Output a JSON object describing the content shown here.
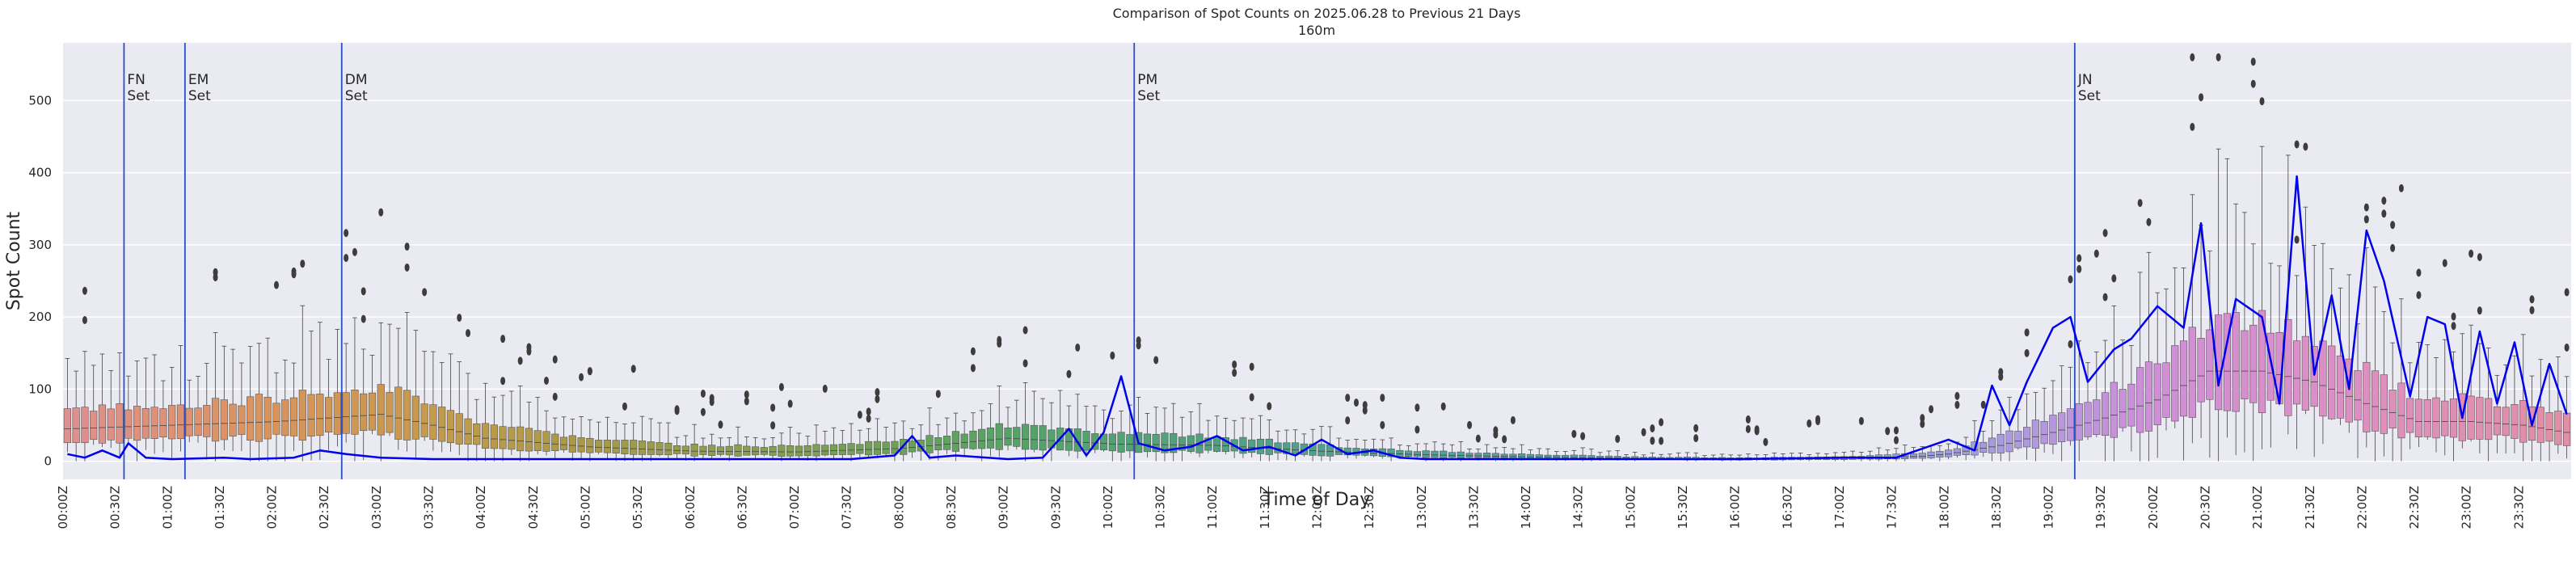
{
  "chart_data": {
    "type": "box",
    "title": "Comparison of Spot Counts on 2025.06.28 to Previous 21 Days",
    "subtitle": "160m",
    "xlabel": "Time of Day",
    "ylabel": "Spot Count",
    "ylim": [
      -25,
      580
    ],
    "yticks": [
      0,
      100,
      200,
      300,
      400,
      500
    ],
    "grid": true,
    "bins_per_hour": 12,
    "x_tick_labels": [
      "00:00Z",
      "00:30Z",
      "01:00Z",
      "01:30Z",
      "02:00Z",
      "02:30Z",
      "03:00Z",
      "03:30Z",
      "04:00Z",
      "04:30Z",
      "05:00Z",
      "05:30Z",
      "06:00Z",
      "06:30Z",
      "07:00Z",
      "07:30Z",
      "08:00Z",
      "08:30Z",
      "09:00Z",
      "09:30Z",
      "10:00Z",
      "10:30Z",
      "11:00Z",
      "11:30Z",
      "12:00Z",
      "12:30Z",
      "13:00Z",
      "13:30Z",
      "14:00Z",
      "14:30Z",
      "15:00Z",
      "15:30Z",
      "16:00Z",
      "16:30Z",
      "17:00Z",
      "17:30Z",
      "18:00Z",
      "18:30Z",
      "19:00Z",
      "19:30Z",
      "20:00Z",
      "20:30Z",
      "21:00Z",
      "21:30Z",
      "22:00Z",
      "22:30Z",
      "23:00Z",
      "23:30Z"
    ],
    "events": [
      {
        "time": "00:35Z",
        "label1": "FN",
        "label2": "Set"
      },
      {
        "time": "01:10Z",
        "label1": "EM",
        "label2": "Set"
      },
      {
        "time": "02:40Z",
        "label1": "DM",
        "label2": "Set"
      },
      {
        "time": "10:15Z",
        "label1": "PM",
        "label2": "Set"
      },
      {
        "time": "19:15Z",
        "label1": "JN",
        "label2": "Set"
      }
    ],
    "median_profile": [
      {
        "time": "00:00Z",
        "value": 45
      },
      {
        "time": "01:00Z",
        "value": 50
      },
      {
        "time": "02:00Z",
        "value": 55
      },
      {
        "time": "03:00Z",
        "value": 65
      },
      {
        "time": "03:30Z",
        "value": 50
      },
      {
        "time": "04:00Z",
        "value": 32
      },
      {
        "time": "05:00Z",
        "value": 20
      },
      {
        "time": "06:00Z",
        "value": 14
      },
      {
        "time": "07:00Z",
        "value": 13
      },
      {
        "time": "08:00Z",
        "value": 18
      },
      {
        "time": "09:00Z",
        "value": 32
      },
      {
        "time": "10:00Z",
        "value": 24
      },
      {
        "time": "11:00Z",
        "value": 22
      },
      {
        "time": "12:00Z",
        "value": 14
      },
      {
        "time": "13:00Z",
        "value": 9
      },
      {
        "time": "14:00Z",
        "value": 6
      },
      {
        "time": "15:00Z",
        "value": 4
      },
      {
        "time": "16:00Z",
        "value": 3
      },
      {
        "time": "17:00Z",
        "value": 4
      },
      {
        "time": "17:45Z",
        "value": 7
      },
      {
        "time": "18:00Z",
        "value": 10
      },
      {
        "time": "18:30Z",
        "value": 22
      },
      {
        "time": "19:00Z",
        "value": 40
      },
      {
        "time": "19:30Z",
        "value": 60
      },
      {
        "time": "20:00Z",
        "value": 85
      },
      {
        "time": "20:30Z",
        "value": 125
      },
      {
        "time": "21:00Z",
        "value": 125
      },
      {
        "time": "21:30Z",
        "value": 110
      },
      {
        "time": "22:00Z",
        "value": 80
      },
      {
        "time": "22:30Z",
        "value": 55
      },
      {
        "time": "23:00Z",
        "value": 55
      },
      {
        "time": "23:30Z",
        "value": 50
      },
      {
        "time": "23:55Z",
        "value": 40
      }
    ],
    "hue_colors": [
      {
        "time": "00:00Z",
        "color": "#e08f8f"
      },
      {
        "time": "02:00Z",
        "color": "#d9945a"
      },
      {
        "time": "03:30Z",
        "color": "#c49a4c"
      },
      {
        "time": "05:00Z",
        "color": "#a79a48"
      },
      {
        "time": "07:00Z",
        "color": "#7ea04d"
      },
      {
        "time": "09:00Z",
        "color": "#56a366"
      },
      {
        "time": "12:00Z",
        "color": "#4fa08e"
      },
      {
        "time": "15:00Z",
        "color": "#5ba0b0"
      },
      {
        "time": "17:00Z",
        "color": "#7e9fd0"
      },
      {
        "time": "18:30Z",
        "color": "#a99be0"
      },
      {
        "time": "20:00Z",
        "color": "#d18ed8"
      },
      {
        "time": "22:00Z",
        "color": "#de8fc0"
      },
      {
        "time": "23:55Z",
        "color": "#e08fa5"
      }
    ],
    "today_series": {
      "name": "2025.06.28",
      "color": "#0000ee",
      "points": [
        {
          "time": "00:00Z",
          "value": 10
        },
        {
          "time": "00:10Z",
          "value": 5
        },
        {
          "time": "00:20Z",
          "value": 15
        },
        {
          "time": "00:30Z",
          "value": 5
        },
        {
          "time": "00:35Z",
          "value": 25
        },
        {
          "time": "00:45Z",
          "value": 5
        },
        {
          "time": "01:00Z",
          "value": 3
        },
        {
          "time": "01:30Z",
          "value": 5
        },
        {
          "time": "01:45Z",
          "value": 3
        },
        {
          "time": "02:10Z",
          "value": 5
        },
        {
          "time": "02:25Z",
          "value": 15
        },
        {
          "time": "02:40Z",
          "value": 10
        },
        {
          "time": "03:00Z",
          "value": 5
        },
        {
          "time": "03:30Z",
          "value": 3
        },
        {
          "time": "04:00Z",
          "value": 3
        },
        {
          "time": "07:30Z",
          "value": 3
        },
        {
          "time": "07:55Z",
          "value": 8
        },
        {
          "time": "08:05Z",
          "value": 35
        },
        {
          "time": "08:15Z",
          "value": 5
        },
        {
          "time": "08:30Z",
          "value": 8
        },
        {
          "time": "09:00Z",
          "value": 3
        },
        {
          "time": "09:20Z",
          "value": 5
        },
        {
          "time": "09:35Z",
          "value": 45
        },
        {
          "time": "09:45Z",
          "value": 8
        },
        {
          "time": "09:55Z",
          "value": 40
        },
        {
          "time": "10:05Z",
          "value": 118
        },
        {
          "time": "10:15Z",
          "value": 25
        },
        {
          "time": "10:30Z",
          "value": 15
        },
        {
          "time": "10:45Z",
          "value": 20
        },
        {
          "time": "11:00Z",
          "value": 35
        },
        {
          "time": "11:15Z",
          "value": 15
        },
        {
          "time": "11:30Z",
          "value": 20
        },
        {
          "time": "11:45Z",
          "value": 8
        },
        {
          "time": "12:00Z",
          "value": 30
        },
        {
          "time": "12:15Z",
          "value": 10
        },
        {
          "time": "12:30Z",
          "value": 15
        },
        {
          "time": "12:45Z",
          "value": 5
        },
        {
          "time": "13:00Z",
          "value": 3
        },
        {
          "time": "16:00Z",
          "value": 3
        },
        {
          "time": "17:00Z",
          "value": 5
        },
        {
          "time": "17:30Z",
          "value": 5
        },
        {
          "time": "18:00Z",
          "value": 30
        },
        {
          "time": "18:15Z",
          "value": 15
        },
        {
          "time": "18:25Z",
          "value": 105
        },
        {
          "time": "18:35Z",
          "value": 50
        },
        {
          "time": "18:45Z",
          "value": 110
        },
        {
          "time": "19:00Z",
          "value": 185
        },
        {
          "time": "19:10Z",
          "value": 200
        },
        {
          "time": "19:20Z",
          "value": 110
        },
        {
          "time": "19:35Z",
          "value": 155
        },
        {
          "time": "19:45Z",
          "value": 170
        },
        {
          "time": "20:00Z",
          "value": 215
        },
        {
          "time": "20:15Z",
          "value": 185
        },
        {
          "time": "20:25Z",
          "value": 330
        },
        {
          "time": "20:35Z",
          "value": 105
        },
        {
          "time": "20:45Z",
          "value": 225
        },
        {
          "time": "21:00Z",
          "value": 200
        },
        {
          "time": "21:10Z",
          "value": 80
        },
        {
          "time": "21:20Z",
          "value": 395
        },
        {
          "time": "21:30Z",
          "value": 120
        },
        {
          "time": "21:40Z",
          "value": 230
        },
        {
          "time": "21:50Z",
          "value": 100
        },
        {
          "time": "22:00Z",
          "value": 320
        },
        {
          "time": "22:10Z",
          "value": 250
        },
        {
          "time": "22:25Z",
          "value": 90
        },
        {
          "time": "22:35Z",
          "value": 200
        },
        {
          "time": "22:45Z",
          "value": 190
        },
        {
          "time": "22:55Z",
          "value": 60
        },
        {
          "time": "23:05Z",
          "value": 180
        },
        {
          "time": "23:15Z",
          "value": 80
        },
        {
          "time": "23:25Z",
          "value": 165
        },
        {
          "time": "23:35Z",
          "value": 50
        },
        {
          "time": "23:45Z",
          "value": 135
        },
        {
          "time": "23:55Z",
          "value": 65
        }
      ]
    }
  }
}
